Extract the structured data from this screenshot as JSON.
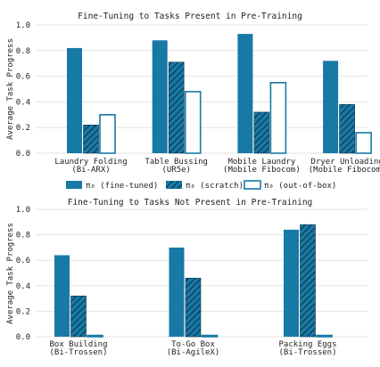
{
  "colors": {
    "fine_tuned": "#1779a6",
    "hatch_line": "#0b2f44",
    "outline": "#1779a6",
    "grid": "#e3e3e3"
  },
  "legend": {
    "items": [
      {
        "key": "fine_tuned",
        "label": "π₀ (fine-tuned)"
      },
      {
        "key": "scratch",
        "label": "π₀ (scratch)"
      },
      {
        "key": "out_of_box",
        "label": "π₀ (out-of-box)"
      }
    ]
  },
  "chart_data": [
    {
      "type": "bar",
      "title": "Fine-Tuning to Tasks Present in Pre-Training",
      "ylabel": "Average Task Progress",
      "ylim": [
        0,
        1.0
      ],
      "yticks": [
        "0.0",
        "0.2",
        "0.4",
        "0.6",
        "0.8",
        "1.0"
      ],
      "grid": true,
      "categories": [
        [
          "Laundry Folding",
          "(Bi-ARX)"
        ],
        [
          "Table Bussing",
          "(UR5e)"
        ],
        [
          "Mobile Laundry",
          "(Mobile Fibocom)"
        ],
        [
          "Dryer Unloading",
          "(Mobile Fibocom)"
        ]
      ],
      "series": [
        {
          "key": "fine_tuned",
          "values": [
            0.82,
            0.88,
            0.93,
            0.72
          ]
        },
        {
          "key": "scratch",
          "values": [
            0.22,
            0.71,
            0.32,
            0.38
          ]
        },
        {
          "key": "out_of_box",
          "values": [
            0.3,
            0.48,
            0.55,
            0.16
          ]
        }
      ]
    },
    {
      "type": "bar",
      "title": "Fine-Tuning to Tasks Not Present in Pre-Training",
      "ylabel": "Average Task Progress",
      "ylim": [
        0,
        1.0
      ],
      "yticks": [
        "0.0",
        "0.2",
        "0.4",
        "0.6",
        "0.8",
        "1.0"
      ],
      "grid": true,
      "categories": [
        [
          "Box Building",
          "(Bi-Trossen)"
        ],
        [
          "To-Go Box",
          "(Bi-AgileX)"
        ],
        [
          "Packing Eggs",
          "(Bi-Trossen)"
        ]
      ],
      "series": [
        {
          "key": "fine_tuned",
          "values": [
            0.64,
            0.7,
            0.84
          ]
        },
        {
          "key": "scratch",
          "values": [
            0.32,
            0.46,
            0.88
          ]
        },
        {
          "key": "out_of_box",
          "values": [
            0.01,
            0.01,
            0.01
          ]
        }
      ]
    }
  ]
}
